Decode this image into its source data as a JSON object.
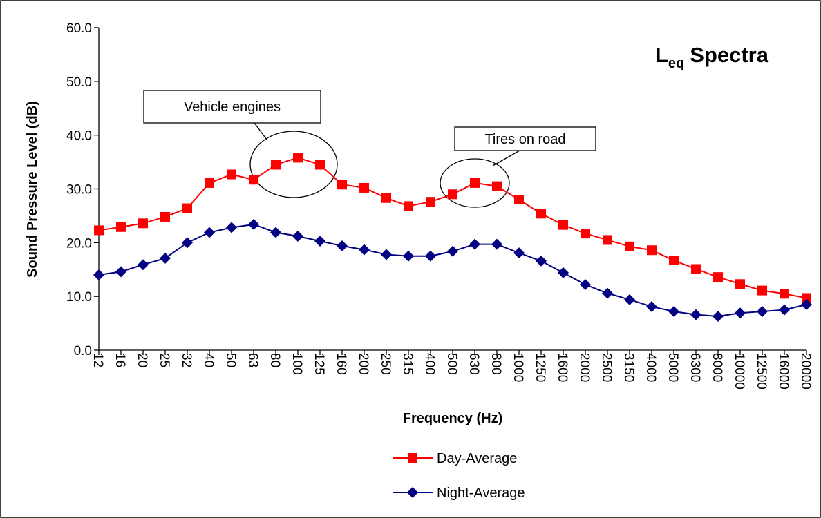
{
  "chart_data": {
    "type": "line",
    "title": {
      "main": "L",
      "sub": "eq",
      "rest": "Spectra"
    },
    "x_label": "Frequency (Hz)",
    "y_label": "Sound  Pressure Level (dB)",
    "categories": [
      "12",
      "16",
      "20",
      "25",
      "32",
      "40",
      "50",
      "63",
      "80",
      "100",
      "125",
      "160",
      "200",
      "250",
      "315",
      "400",
      "500",
      "630",
      "800",
      "1000",
      "1250",
      "1600",
      "2000",
      "2500",
      "3150",
      "4000",
      "5000",
      "6300",
      "8000",
      "10000",
      "12500",
      "16000",
      "20000"
    ],
    "series": [
      {
        "name": "Day-Average",
        "color": "#ff0000",
        "marker": "square",
        "values": [
          22.3,
          22.9,
          23.6,
          24.8,
          26.4,
          31.1,
          32.7,
          31.7,
          34.5,
          35.8,
          34.5,
          30.8,
          30.2,
          28.3,
          26.8,
          27.6,
          29.0,
          31.1,
          30.5,
          28.0,
          25.4,
          23.3,
          21.7,
          20.5,
          19.3,
          18.6,
          16.7,
          15.1,
          13.6,
          12.3,
          11.1,
          10.5,
          9.7
        ]
      },
      {
        "name": "Night-Average",
        "color": "#000080",
        "marker": "diamond",
        "values": [
          14.0,
          14.6,
          15.9,
          17.1,
          20.0,
          21.9,
          22.8,
          23.4,
          21.9,
          21.2,
          20.3,
          19.4,
          18.7,
          17.8,
          17.5,
          17.5,
          18.4,
          19.7,
          19.7,
          18.1,
          16.6,
          14.4,
          12.2,
          10.6,
          9.4,
          8.1,
          7.2,
          6.6,
          6.3,
          6.9,
          7.2,
          7.5,
          8.5
        ]
      }
    ],
    "ylim": [
      0,
      60
    ],
    "yticks": [
      {
        "value": 0,
        "label": "0.0"
      },
      {
        "value": 10,
        "label": "10.0"
      },
      {
        "value": 20,
        "label": "20.0"
      },
      {
        "value": 30,
        "label": "30.0"
      },
      {
        "value": 40,
        "label": "40.0"
      },
      {
        "value": 50,
        "label": "50.0"
      },
      {
        "value": 60,
        "label": "60.0"
      }
    ],
    "annotations": [
      "Vehicle engines",
      "Tires on road"
    ],
    "grid": false,
    "legend": "bottom"
  }
}
